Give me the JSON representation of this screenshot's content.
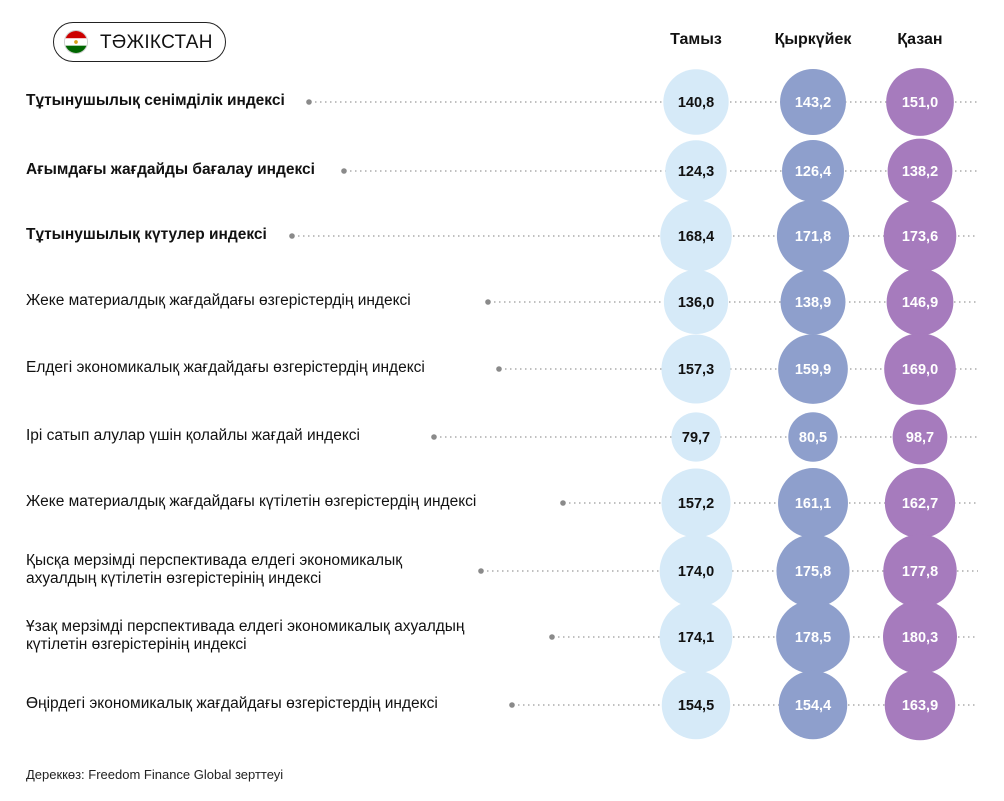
{
  "country": {
    "name": "ТӘЖІКСТАН",
    "flag_icon": "tajikistan-flag-icon",
    "flag_colors": [
      "#cc0000",
      "#ffffff",
      "#006600"
    ]
  },
  "source_note": "Дереккөз: Freedom Finance Global зерттеуі",
  "chart_data": {
    "type": "bubble-table",
    "columns": [
      "Тамыз",
      "Қыркүйек",
      "Қазан"
    ],
    "column_colors": [
      "#d6eaf8",
      "#8e9fcc",
      "#a67bbd"
    ],
    "rows": [
      {
        "label": [
          "Тұтынушылық сенімділік индексі"
        ],
        "bold": true,
        "values": [
          140.8,
          143.2,
          151.0
        ],
        "display": [
          "140,8",
          "143,2",
          "151,0"
        ]
      },
      {
        "label": [
          "Ағымдағы жағдайды бағалау индексі"
        ],
        "bold": true,
        "values": [
          124.3,
          126.4,
          138.2
        ],
        "display": [
          "124,3",
          "126,4",
          "138,2"
        ]
      },
      {
        "label": [
          "Тұтынушылық күтулер индексі"
        ],
        "bold": true,
        "values": [
          168.4,
          171.8,
          173.6
        ],
        "display": [
          "168,4",
          "171,8",
          "173,6"
        ]
      },
      {
        "label": [
          "Жеке материалдық жағдайдағы өзгерістердің индексі"
        ],
        "bold": false,
        "values": [
          136.0,
          138.9,
          146.9
        ],
        "display": [
          "136,0",
          "138,9",
          "146,9"
        ]
      },
      {
        "label": [
          "Елдегі экономикалық жағдайдағы өзгерістердің индексі"
        ],
        "bold": false,
        "values": [
          157.3,
          159.9,
          169.0
        ],
        "display": [
          "157,3",
          "159,9",
          "169,0"
        ]
      },
      {
        "label": [
          "Ірі сатып алулар үшін қолайлы жағдай индексі"
        ],
        "bold": false,
        "values": [
          79.7,
          80.5,
          98.7
        ],
        "display": [
          "79,7",
          "80,5",
          "98,7"
        ]
      },
      {
        "label": [
          "Жеке материалдық жағдайдағы күтілетін өзгерістердің индексі"
        ],
        "bold": false,
        "values": [
          157.2,
          161.1,
          162.7
        ],
        "display": [
          "157,2",
          "161,1",
          "162,7"
        ]
      },
      {
        "label": [
          "Қысқа мерзімді перспективада елдегі экономикалық",
          "ахуалдың күтілетін өзгерістерінің индексі"
        ],
        "bold": false,
        "values": [
          174.0,
          175.8,
          177.8
        ],
        "display": [
          "174,0",
          "175,8",
          "177,8"
        ]
      },
      {
        "label": [
          "Ұзақ мерзімді перспективада елдегі экономикалық ахуалдың",
          "күтілетін өзгерістерінің индексі"
        ],
        "bold": false,
        "values": [
          174.1,
          178.5,
          180.3
        ],
        "display": [
          "174,1",
          "178,5",
          "180,3"
        ]
      },
      {
        "label": [
          "Өңірдегі экономикалық жағдайдағы өзгерістердің индексі"
        ],
        "bold": false,
        "values": [
          154.5,
          154.4,
          163.9
        ],
        "display": [
          "154,5",
          "154,4",
          "163,9"
        ]
      }
    ]
  }
}
